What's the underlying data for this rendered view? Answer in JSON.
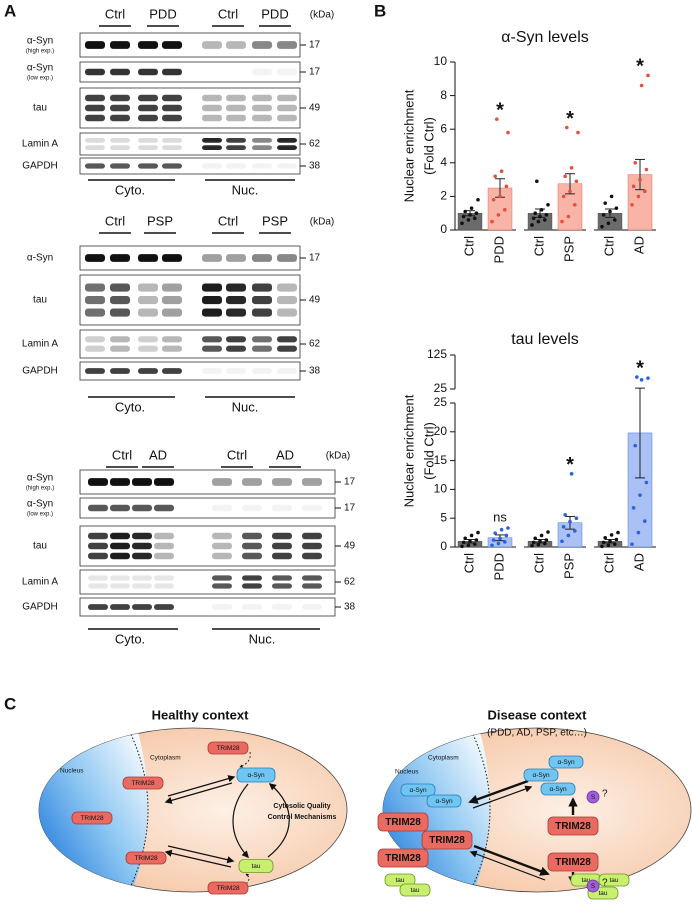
{
  "panel_labels": [
    "A",
    "B",
    "C"
  ],
  "blots": [
    {
      "headers": [
        "Ctrl",
        "PDD",
        "Ctrl",
        "PDD"
      ],
      "kda_header": "(kDa)",
      "rows": [
        {
          "label": "α-Syn",
          "sublabel": "(high exp.)",
          "kda": 17
        },
        {
          "label": "α-Syn",
          "sublabel": "(low exp.)",
          "kda": 17
        },
        {
          "label": "tau",
          "kda": 49
        },
        {
          "label": "Lamin A",
          "kda": 62
        },
        {
          "label": "GAPDH",
          "kda": 38
        }
      ],
      "fractions": [
        "Cyto.",
        "Nuc."
      ]
    },
    {
      "headers": [
        "Ctrl",
        "PSP",
        "Ctrl",
        "PSP"
      ],
      "kda_header": "(kDa)",
      "rows": [
        {
          "label": "α-Syn",
          "kda": 17
        },
        {
          "label": "tau",
          "kda": 49
        },
        {
          "label": "Lamin A",
          "kda": 62
        },
        {
          "label": "GAPDH",
          "kda": 38
        }
      ],
      "fractions": [
        "Cyto.",
        "Nuc."
      ]
    },
    {
      "headers": [
        "Ctrl",
        "AD",
        "Ctrl",
        "AD"
      ],
      "kda_header": "(kDa)",
      "rows": [
        {
          "label": "α-Syn",
          "sublabel": "(high exp.)",
          "kda": 17
        },
        {
          "label": "α-Syn",
          "sublabel": "(low exp.)",
          "kda": 17
        },
        {
          "label": "tau",
          "kda": 49
        },
        {
          "label": "Lamin A",
          "kda": 62
        },
        {
          "label": "GAPDH",
          "kda": 38
        }
      ],
      "fractions": [
        "Cyto.",
        "Nuc."
      ]
    }
  ],
  "chart_data": [
    {
      "type": "bar",
      "title": "α-Syn levels",
      "ylabel": [
        "Nuclear enrichment",
        "(Fold Ctrl)"
      ],
      "categories": [
        "Ctrl",
        "PDD",
        "Ctrl",
        "PSP",
        "Ctrl",
        "AD"
      ],
      "values": [
        1.0,
        2.5,
        1.0,
        2.75,
        1.0,
        3.3
      ],
      "errors": [
        0.15,
        0.55,
        0.25,
        0.6,
        0.25,
        0.9
      ],
      "points": [
        [
          0.4,
          0.6,
          0.7,
          0.8,
          0.9,
          1.0,
          1.1,
          1.3,
          1.8
        ],
        [
          0.5,
          0.9,
          1.2,
          1.8,
          2.0,
          2.6,
          3.2,
          3.5,
          5.8,
          6.6
        ],
        [
          0.3,
          0.5,
          0.6,
          0.7,
          0.8,
          0.9,
          1.0,
          1.2,
          1.5,
          2.9
        ],
        [
          0.5,
          0.8,
          1.5,
          2.0,
          2.3,
          2.9,
          3.2,
          3.7,
          5.8,
          6.1
        ],
        [
          0.2,
          0.4,
          0.6,
          0.9,
          1.1,
          1.3,
          1.6,
          2.0
        ],
        [
          1.5,
          2.0,
          2.3,
          2.6,
          3.0,
          3.6,
          4.0,
          8.6,
          9.2
        ]
      ],
      "colors": [
        "#6b6b6b",
        "#f7b4a7",
        "#6b6b6b",
        "#f7b4a7",
        "#6b6b6b",
        "#f7b4a7"
      ],
      "point_colors": [
        "#111111",
        "#e4503c",
        "#111111",
        "#e4503c",
        "#111111",
        "#e4503c"
      ],
      "significance": [
        null,
        "*",
        null,
        "*",
        null,
        "*"
      ],
      "ylim": [
        0,
        10
      ],
      "yticks": [
        0,
        2,
        4,
        6,
        8,
        10
      ]
    },
    {
      "type": "bar",
      "title": "tau levels",
      "ylabel": [
        "Nuclear enrichment",
        "(Fold Ctrl)"
      ],
      "categories": [
        "Ctrl",
        "PDD",
        "Ctrl",
        "PSP",
        "Ctrl",
        "AD"
      ],
      "values": [
        1.0,
        1.6,
        1.0,
        4.2,
        1.0,
        19.8
      ],
      "errors": [
        0.3,
        0.5,
        0.3,
        1.1,
        0.3,
        7.8
      ],
      "points": [
        [
          0.1,
          0.3,
          0.5,
          0.8,
          1.0,
          1.2,
          1.5,
          2.0,
          2.5
        ],
        [
          0.3,
          0.6,
          0.9,
          1.2,
          1.5,
          2.0,
          2.4,
          3.0,
          3.3
        ],
        [
          0.2,
          0.4,
          0.6,
          0.8,
          1.0,
          1.2,
          1.5,
          2.0,
          2.6
        ],
        [
          1.0,
          2.0,
          2.8,
          3.5,
          4.4,
          5.0,
          5.6,
          12.7
        ],
        [
          0.1,
          0.3,
          0.5,
          0.8,
          1.0,
          1.3,
          1.6,
          2.1,
          2.5
        ],
        [
          0.5,
          2.5,
          4.5,
          6.8,
          9.0,
          11.2,
          17.6,
          52,
          57,
          60
        ]
      ],
      "colors": [
        "#6b6b6b",
        "#a9c1f4",
        "#6b6b6b",
        "#a9c1f4",
        "#6b6b6b",
        "#a9c1f4"
      ],
      "point_colors": [
        "#111111",
        "#2d62d8",
        "#111111",
        "#2d62d8",
        "#111111",
        "#2d62d8"
      ],
      "significance": [
        null,
        "ns",
        null,
        "*",
        null,
        "*"
      ],
      "ylim": [
        0,
        25
      ],
      "yticks": [
        0,
        5,
        10,
        15,
        20,
        25
      ],
      "ylim_break": [
        25,
        125
      ],
      "yticks_break": [
        25,
        125
      ]
    }
  ],
  "diagram": {
    "healthy": {
      "title": "Healthy context",
      "cytoplasm": "Cytoplasm",
      "nucleus": "Nucleus",
      "trim28": [
        "TRIM28",
        "TRIM28",
        "TRIM28",
        "TRIM28",
        "TRIM28"
      ],
      "asyn": "α-Syn",
      "tau": "tau",
      "mechanism": [
        "Cytosolic Quality",
        "Control Mechanisms"
      ]
    },
    "disease": {
      "title": "Disease context",
      "subtitle": "(PDD, AD, PSP, etc…)",
      "cytoplasm": "Cytoplasm",
      "nucleus": "Nucleus",
      "asyn": [
        "α-Syn",
        "α-Syn",
        "α-Syn",
        "α-Syn",
        "α-Syn"
      ],
      "trim28": [
        "TRIM28",
        "TRIM28",
        "TRIM28",
        "TRIM28",
        "TRIM28"
      ],
      "tau": [
        "tau",
        "tau",
        "tau",
        "tau",
        "tau"
      ],
      "modification": [
        "S",
        "S"
      ],
      "uncertain": [
        "?",
        "?"
      ]
    }
  }
}
